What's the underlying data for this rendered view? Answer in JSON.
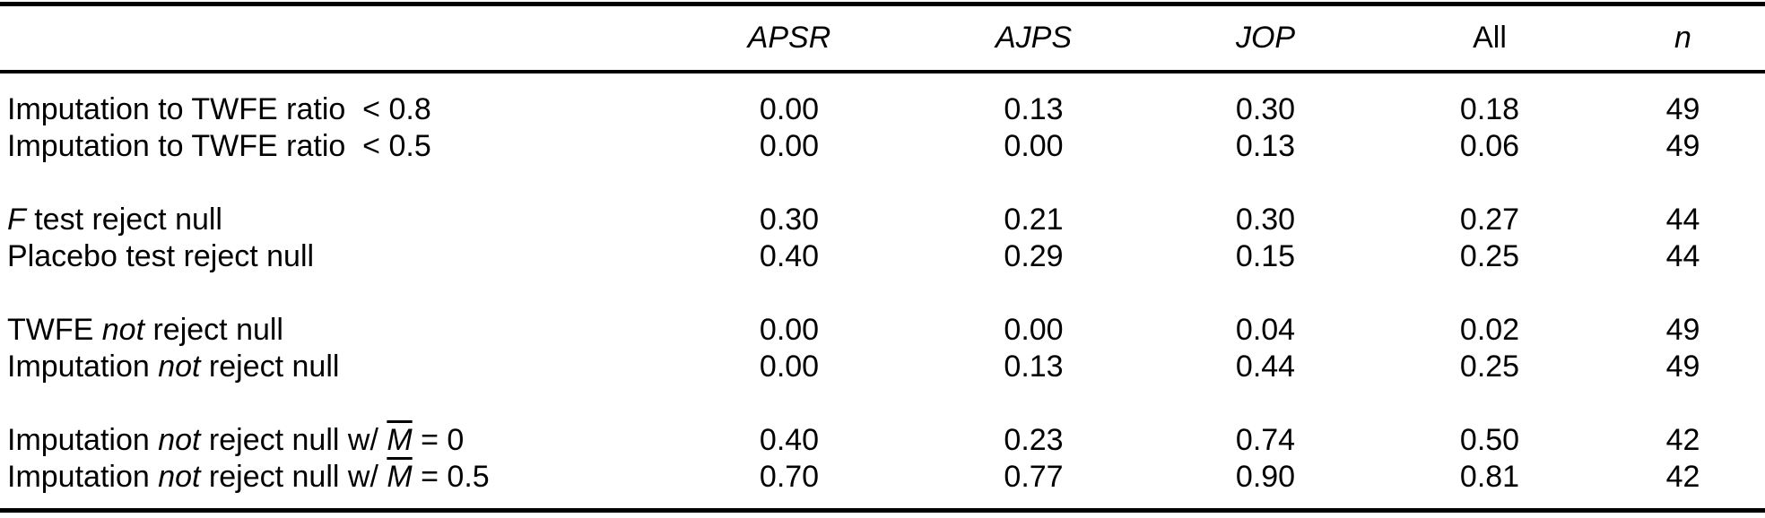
{
  "table": {
    "headers": [
      "APSR",
      "AJPS",
      "JOP",
      "All",
      "n"
    ],
    "rows": [
      {
        "label": [
          {
            "t": "Imputation to TWFE ratio  < 0.8"
          }
        ],
        "values": [
          "0.00",
          "0.13",
          "0.30",
          "0.18",
          "49"
        ]
      },
      {
        "label": [
          {
            "t": "Imputation to TWFE ratio  < 0.5"
          }
        ],
        "values": [
          "0.00",
          "0.00",
          "0.13",
          "0.06",
          "49"
        ]
      },
      {
        "label": [
          {
            "t": "F"
          },
          {
            "t": " test reject null"
          }
        ],
        "values": [
          "0.30",
          "0.21",
          "0.30",
          "0.27",
          "44"
        ]
      },
      {
        "label": [
          {
            "t": "Placebo test reject null"
          }
        ],
        "values": [
          "0.40",
          "0.29",
          "0.15",
          "0.25",
          "44"
        ]
      },
      {
        "label": [
          {
            "t": "TWFE "
          },
          {
            "t": "not"
          },
          {
            "t": " reject null"
          }
        ],
        "values": [
          "0.00",
          "0.00",
          "0.04",
          "0.02",
          "49"
        ]
      },
      {
        "label": [
          {
            "t": "Imputation "
          },
          {
            "t": "not"
          },
          {
            "t": " reject null"
          }
        ],
        "values": [
          "0.00",
          "0.13",
          "0.44",
          "0.25",
          "49"
        ]
      },
      {
        "label": [
          {
            "t": "Imputation "
          },
          {
            "t": "not"
          },
          {
            "t": " reject null w/ "
          },
          {
            "t": "M"
          },
          {
            "t": " = 0"
          }
        ],
        "values": [
          "0.40",
          "0.23",
          "0.74",
          "0.50",
          "42"
        ]
      },
      {
        "label": [
          {
            "t": "Imputation "
          },
          {
            "t": "not"
          },
          {
            "t": " reject null w/ "
          },
          {
            "t": "M"
          },
          {
            "t": " = 0.5"
          }
        ],
        "values": [
          "0.70",
          "0.77",
          "0.90",
          "0.81",
          "42"
        ]
      }
    ]
  }
}
